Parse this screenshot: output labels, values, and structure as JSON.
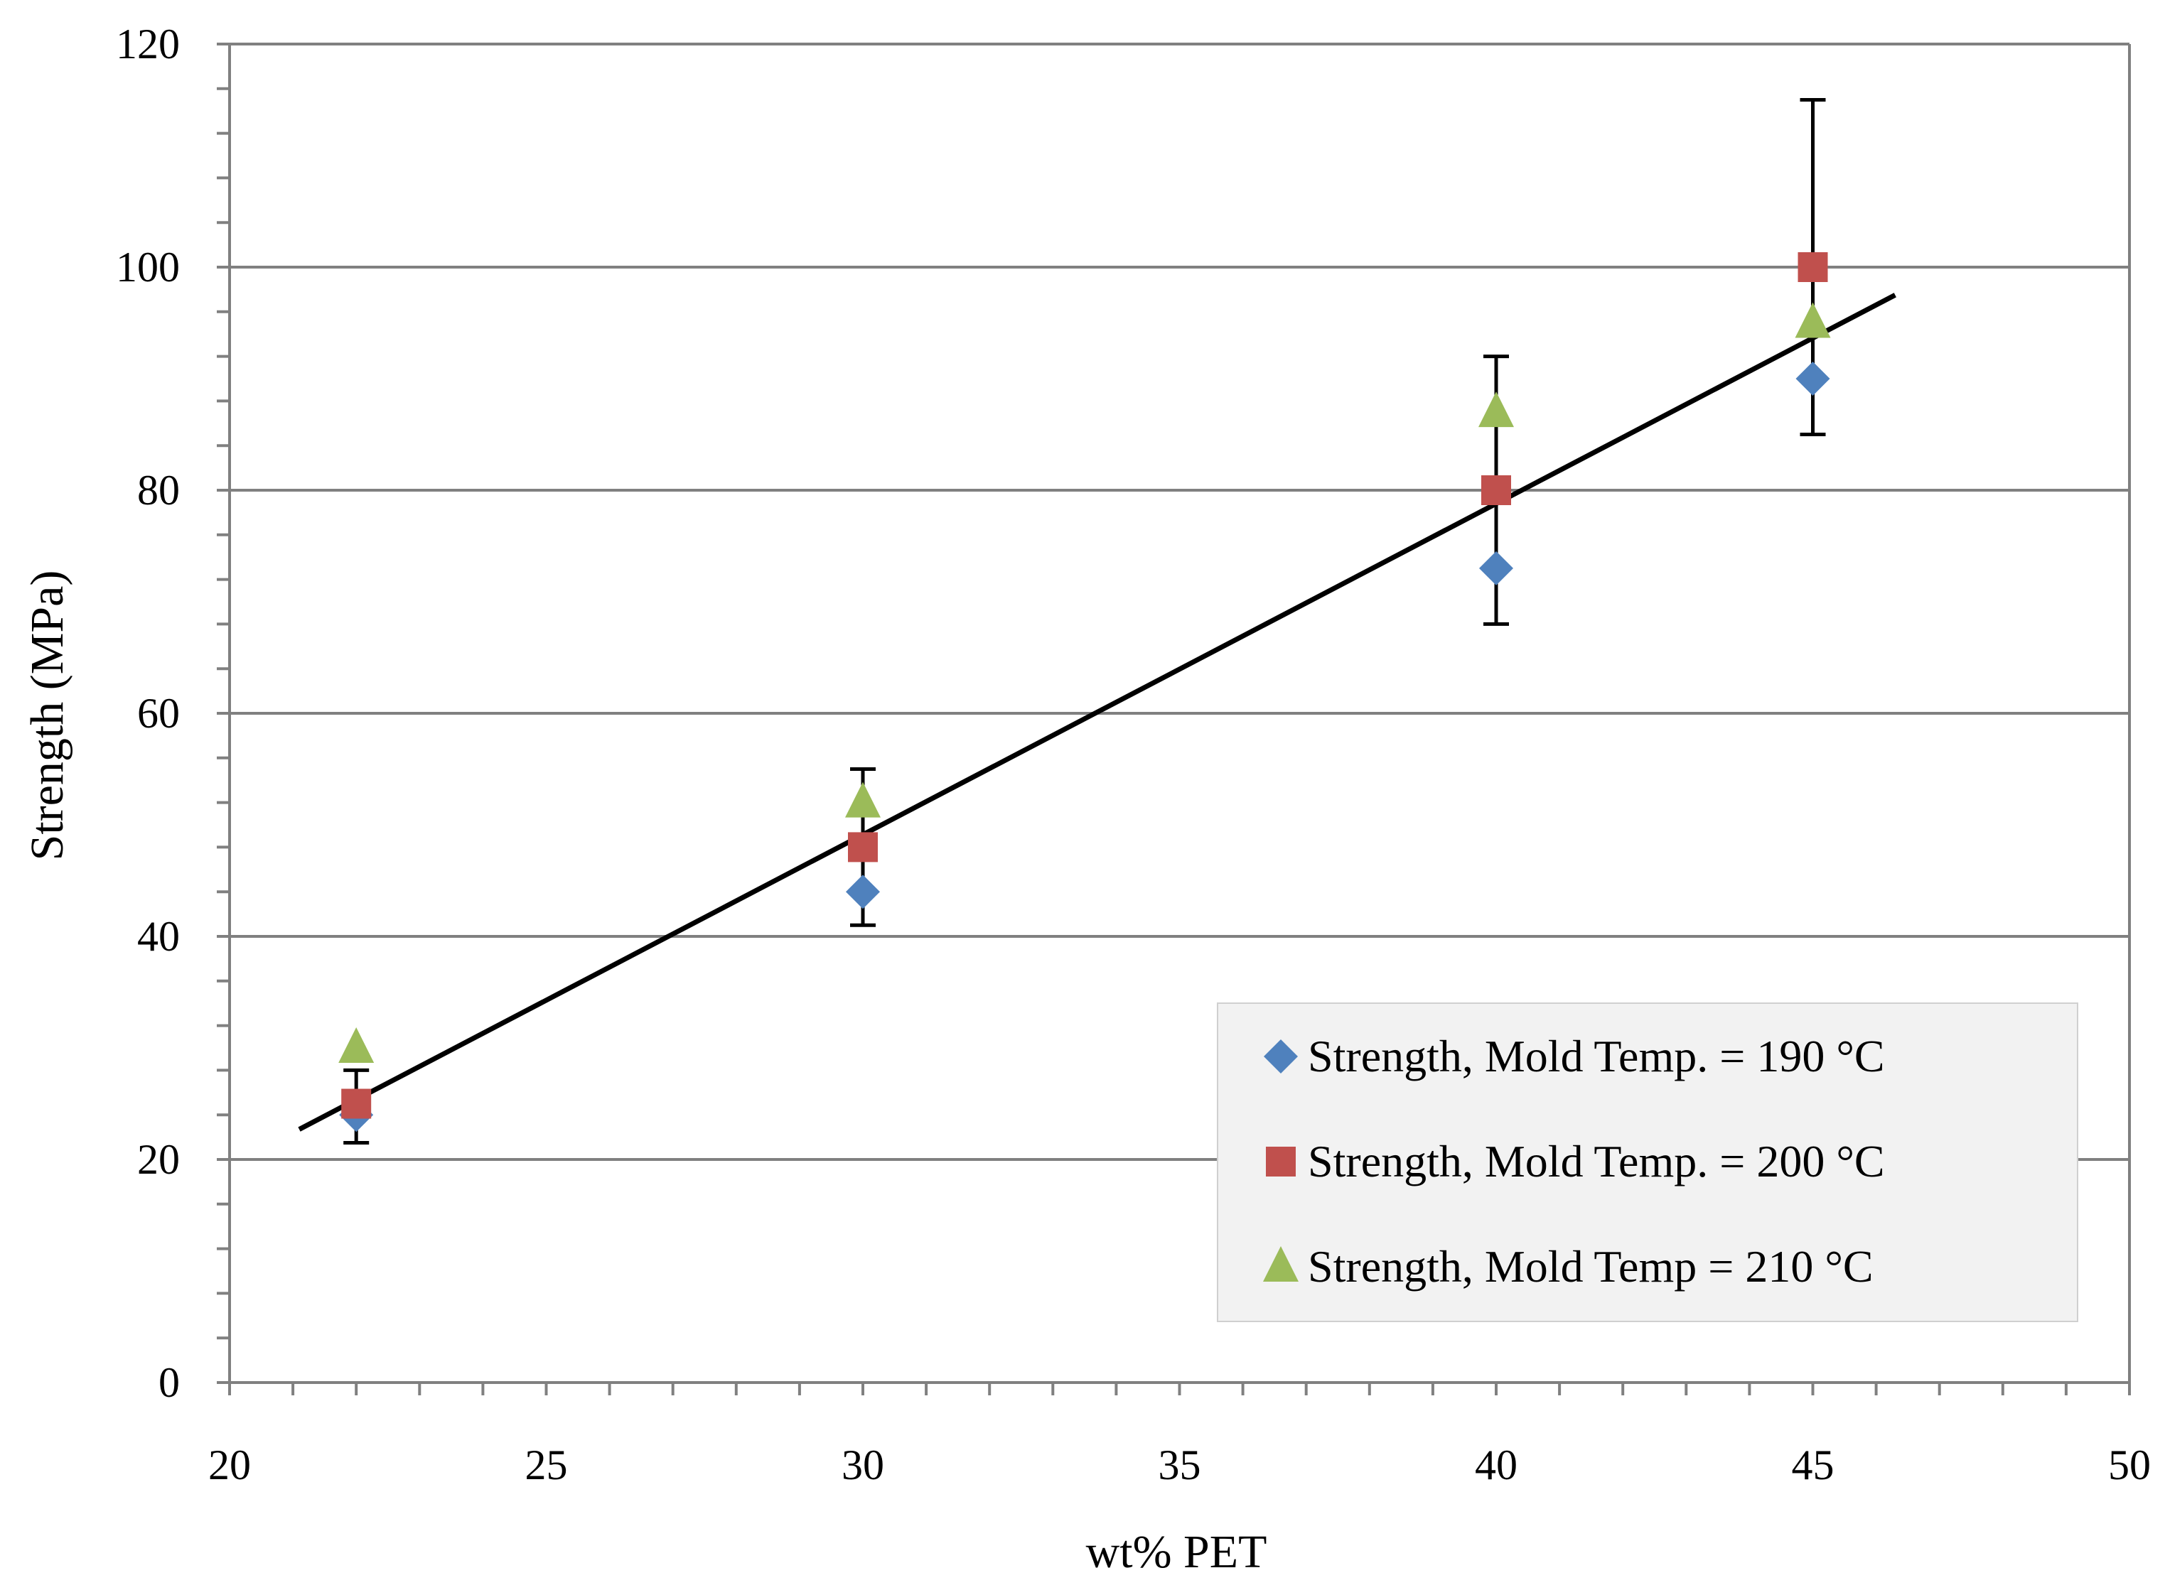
{
  "chart_data": {
    "type": "scatter",
    "title": "",
    "xlabel": "wt% PET",
    "ylabel": "Strength (MPa)",
    "xlim": [
      20,
      50
    ],
    "ylim": [
      0,
      120
    ],
    "xticks": [
      20,
      25,
      30,
      35,
      40,
      45,
      50
    ],
    "yticks": [
      0,
      20,
      40,
      60,
      80,
      100,
      120
    ],
    "x_minor_step": 1,
    "y_minor_step": 4,
    "grid": "horizontal major",
    "legend_position": "bottom-right",
    "colors": {
      "s190": "#4f81bd",
      "s200": "#c0504d",
      "s210": "#9bbb59",
      "trend": "#000000",
      "grid": "#808080",
      "legend_bg": "#f2f2f2"
    },
    "series": [
      {
        "name": "Strength, Mold Temp. = 190 °C",
        "marker": "diamond",
        "color_key": "s190",
        "x": [
          22,
          30,
          40,
          45
        ],
        "y": [
          24,
          44,
          73,
          90
        ]
      },
      {
        "name": "Strength, Mold Temp. = 200 °C",
        "marker": "square",
        "color_key": "s200",
        "x": [
          22,
          30,
          40,
          45
        ],
        "y": [
          25,
          48,
          80,
          100
        ]
      },
      {
        "name": "Strength, Mold Temp = 210 °C",
        "marker": "triangle",
        "color_key": "s210",
        "x": [
          22,
          30,
          40,
          45
        ],
        "y": [
          30,
          52,
          87,
          95
        ]
      }
    ],
    "error_bars": [
      {
        "x": 22,
        "low": 21.5,
        "high": 28
      },
      {
        "x": 30,
        "low": 41,
        "high": 55
      },
      {
        "x": 40,
        "low": 68,
        "high": 92
      },
      {
        "x": 45,
        "low": 85,
        "high": 115
      }
    ],
    "trendline": {
      "x": [
        21.1,
        46.3
      ],
      "y": [
        22.7,
        97.5
      ]
    }
  }
}
